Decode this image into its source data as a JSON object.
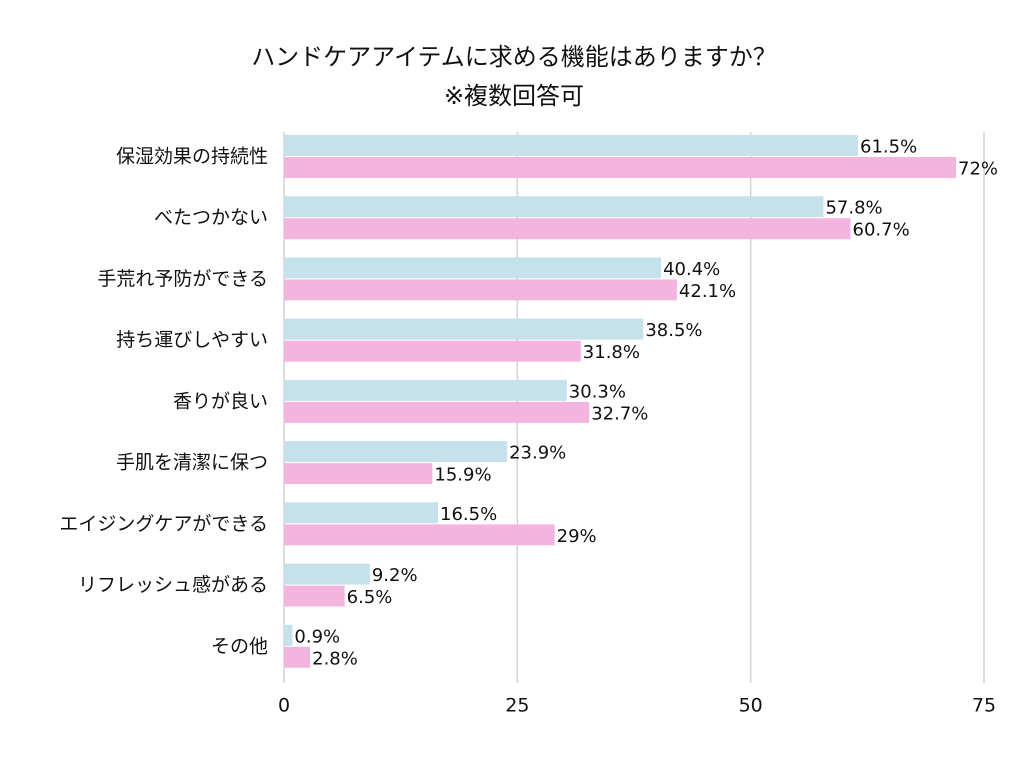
{
  "chart_data": {
    "type": "bar",
    "orientation": "horizontal",
    "title": "ハンドケアアイテムに求める機能はありますか？",
    "subtitle": "※複数回答可",
    "categories": [
      "保湿効果の持続性",
      "べたつかない",
      "手荒れ予防ができる",
      "持ち運びしやすい",
      "香りが良い",
      "手肌を清潔に保つ",
      "エイジングケアができる",
      "リフレッシュ感がある",
      "その他"
    ],
    "series": [
      {
        "color": "#c5e1ec",
        "values": [
          61.5,
          57.8,
          40.4,
          38.5,
          30.3,
          23.9,
          16.5,
          9.2,
          0.9
        ],
        "value_labels": [
          "61.5%",
          "57.8%",
          "40.4%",
          "38.5%",
          "30.3%",
          "23.9%",
          "16.5%",
          "9.2%",
          "0.9%"
        ]
      },
      {
        "color": "#f4b4e0",
        "values": [
          72,
          60.7,
          42.1,
          31.8,
          32.7,
          15.9,
          29,
          6.5,
          2.8
        ],
        "value_labels": [
          "72%",
          "60.7%",
          "42.1%",
          "31.8%",
          "32.7%",
          "15.9%",
          "29%",
          "6.5%",
          "2.8%"
        ]
      }
    ],
    "xlim": [
      0,
      75
    ],
    "xticks": [
      0,
      25,
      50,
      75
    ],
    "grid": true
  }
}
